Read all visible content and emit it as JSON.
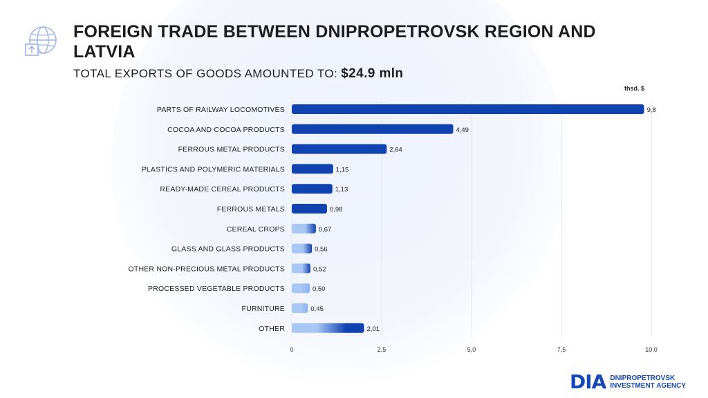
{
  "title": "FOREIGN TRADE BETWEEN DNIPROPETROVSK REGION AND LATVIA",
  "subtitle_label": "TOTAL EXPORTS OF GOODS AMOUNTED TO:",
  "subtitle_value": "$24.9 mln",
  "unit": "thsd. $",
  "logo": {
    "mark": "DIA",
    "line1": "DNIPROPETROVSK",
    "line2": "INVESTMENT AGENCY"
  },
  "colors": {
    "bar_dark": "#1143b0",
    "bar_light": "#a9c7f5",
    "grid": "#e3e7ef",
    "text": "#1d1d1f"
  },
  "chart_data": {
    "type": "bar",
    "orientation": "horizontal",
    "categories": [
      "PARTS OF RAILWAY LOCOMOTIVES",
      "COCOA AND COCOA PRODUCTS",
      "FERROUS METAL PRODUCTS",
      "PLASTICS AND POLYMERIC MATERIALS",
      "READY-MADE CEREAL PRODUCTS",
      "FERROUS METALS",
      "CEREAL CROPS",
      "GLASS AND GLASS PRODUCTS",
      "OTHER NON-PRECIOUS METAL PRODUCTS",
      "PROCESSED VEGETABLE PRODUCTS",
      "FURNITURE",
      "OTHER"
    ],
    "values": [
      9.8,
      4.49,
      2.64,
      1.15,
      1.13,
      0.98,
      0.67,
      0.56,
      0.52,
      0.5,
      0.45,
      2.01
    ],
    "value_labels": [
      "9,8",
      "4,49",
      "2,64",
      "1,15",
      "1,13",
      "0,98",
      "0,67",
      "0,56",
      "0,52",
      "0,50",
      "0,45",
      "2,01"
    ],
    "xticks": [
      0,
      2.5,
      5,
      7.5,
      10
    ],
    "xtick_labels": [
      "0",
      "2,5",
      "5,0",
      "7,5",
      "10,0"
    ],
    "xlim": [
      0,
      10
    ],
    "grid": true,
    "gridlines": "vertical"
  }
}
